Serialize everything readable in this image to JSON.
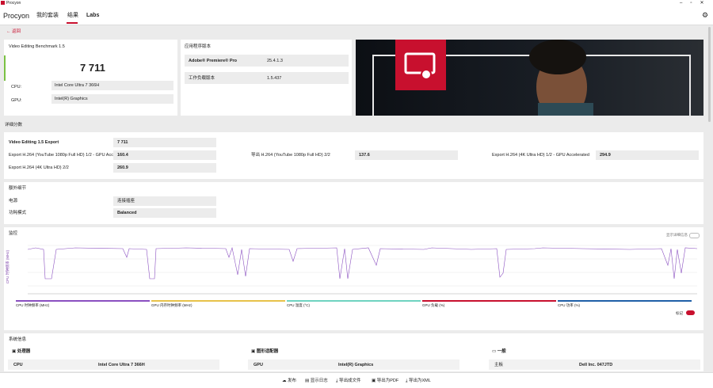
{
  "window": {
    "title": "Procyon"
  },
  "nav": {
    "brand": "Procyon",
    "tabs": [
      "我的套装",
      "结果",
      "Labs"
    ]
  },
  "back": "返回",
  "score_card": {
    "benchmark": "Video Editing Benchmark 1.5",
    "score": "7 711",
    "cpu_label": "CPU:",
    "cpu": "Intel Core Ultra 7 366H",
    "gpu_label": "GPU:",
    "gpu": "Intel(R) Graphics"
  },
  "app_version": {
    "title": "应用程序版本",
    "rows": [
      [
        "Adobe® Premiere® Pro",
        "25.4.1.3"
      ],
      [
        "工作负载版本",
        "1.5.437"
      ]
    ]
  },
  "detail": {
    "title": "详细分数",
    "rows": [
      [
        "Video Editing 1.5 Export",
        "7 711"
      ],
      [
        "Export H.264 (YouTube 1080p Full HD) 1/2 - GPU Accelerated",
        "160.4"
      ],
      [
        "导出 H.264 (YouTube 1080p Full HD) 2/2",
        "137.6"
      ],
      [
        "Export H.264 (4K Ultra HD) 1/2 - GPU Accelerated",
        "294.9"
      ],
      [
        "Export H.264 (4K Ultra HD) 2/2",
        "260.9"
      ]
    ]
  },
  "extra": {
    "title": "额外细节",
    "rows": [
      [
        "电源",
        "连接插座"
      ],
      [
        "功耗模式",
        "Balanced"
      ]
    ]
  },
  "monitor": {
    "title": "监控",
    "toggle_label": "显示详细信息",
    "y_label": "CPU 时钟频率 (MHz)",
    "legend": [
      "CPU 时钟频率 (MHz)",
      "GPU 内存时钟频率 (MHz)",
      "CPU 温度 (°C)",
      "GPU 负载 (%)",
      "CPU 功率 (%)"
    ],
    "switch_label": "标记"
  },
  "sysinfo": {
    "title": "系统信息",
    "groups": [
      {
        "title": "处理器",
        "label": "CPU",
        "value": "Intel Core Ultra 7 366H"
      },
      {
        "title": "图形适配器",
        "label": "GPU",
        "value": "Intel(R) Graphics"
      },
      {
        "title": "一般",
        "label": "主板",
        "value": "Dell Inc. 047JTD"
      }
    ]
  },
  "footer": [
    "发布",
    "显示日志",
    "导出成文件",
    "导出为PDF",
    "导出为XML"
  ]
}
